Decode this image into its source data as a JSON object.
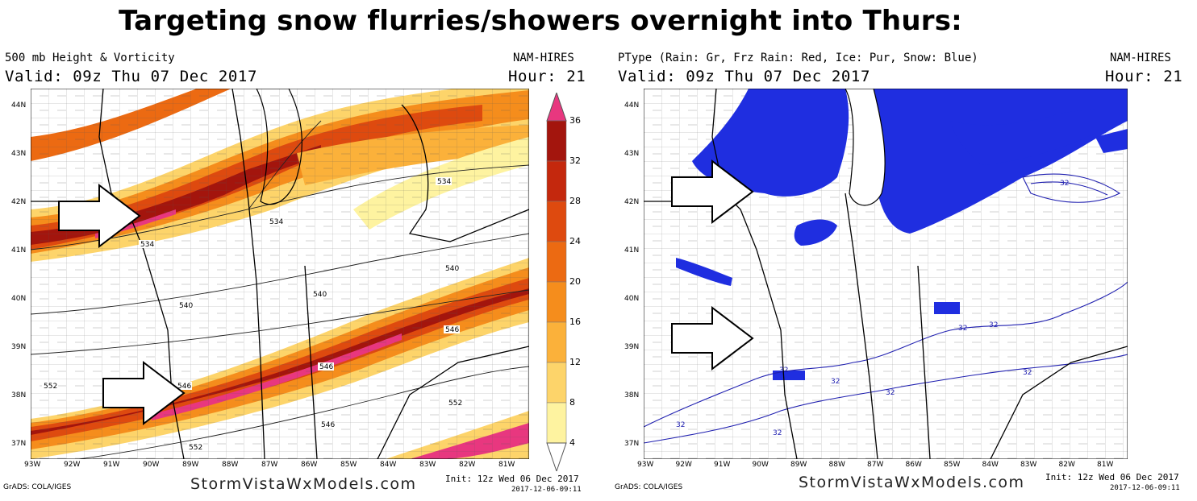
{
  "headline": "Targeting snow flurries/showers overnight into Thurs:",
  "left_panel": {
    "title": "500 mb Height & Vorticity",
    "model": "NAM-HIRES",
    "valid": "Valid: 09z Thu 07 Dec 2017",
    "hour": "Hour: 21",
    "contours": [
      "534",
      "534",
      "534",
      "540",
      "540",
      "540",
      "546",
      "546",
      "546",
      "552",
      "552",
      "546",
      "552"
    ],
    "colorbar_ticks": [
      "36",
      "32",
      "28",
      "24",
      "20",
      "16",
      "12",
      "8",
      "4"
    ],
    "colorbar_colors": [
      "#e8377f",
      "#a3150d",
      "#c4280d",
      "#de4a0f",
      "#ec6a12",
      "#f58d1c",
      "#fbb13a",
      "#fdd46a",
      "#fef3a0"
    ],
    "init": "Init: 12z Wed 06 Dec 2017",
    "timestamp": "2017-12-06-09:11",
    "footer_left": "GrADS: COLA/IGES",
    "brand": "StormVistaWxModels.com"
  },
  "right_panel": {
    "title": "PType (Rain: Gr, Frz Rain: Red, Ice: Pur, Snow: Blue)",
    "model": "NAM-HIRES",
    "valid": "Valid: 09z Thu 07 Dec 2017",
    "hour": "Hour: 21",
    "contour_label": "32",
    "init": "Init: 12z Wed 06 Dec 2017",
    "timestamp": "2017-12-06-09:11",
    "footer_left": "GrADS: COLA/IGES",
    "brand": "StormVistaWxModels.com"
  },
  "latitudes": [
    "44N",
    "43N",
    "42N",
    "41N",
    "40N",
    "39N",
    "38N",
    "37N"
  ],
  "longitudes": [
    "93W",
    "92W",
    "91W",
    "90W",
    "89W",
    "88W",
    "87W",
    "86W",
    "85W",
    "84W",
    "83W",
    "82W",
    "81W"
  ],
  "colors": {
    "snow": "#1f2ee0",
    "vort_max": "#e8377f",
    "arrow_fill": "#ffffff"
  }
}
